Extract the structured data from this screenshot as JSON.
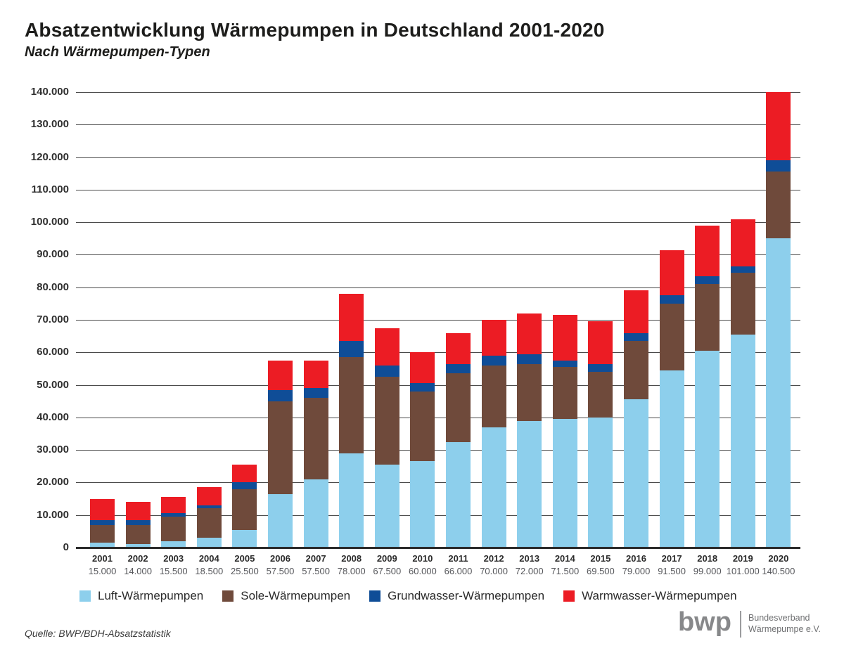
{
  "header": {
    "title": "Absatzentwicklung Wärmepumpen in Deutschland 2001-2020",
    "subtitle": "Nach Wärmepumpen-Typen"
  },
  "footer": {
    "source": "Quelle: BWP/BDH-Absatzstatistik"
  },
  "logo": {
    "mark": "bwp",
    "org_line1": "Bundesverband",
    "org_line2": "Wärmepumpe e.V."
  },
  "chart_data": {
    "type": "bar",
    "stacked": true,
    "grid": true,
    "legend_position": "bottom",
    "ylim": [
      0,
      140000
    ],
    "ytick_step": 10000,
    "ytick_labels": [
      "0",
      "10.000",
      "20.000",
      "30.000",
      "40.000",
      "50.000",
      "60.000",
      "70.000",
      "80.000",
      "90.000",
      "100.000",
      "110.000",
      "120.000",
      "130.000",
      "140.000"
    ],
    "categories": [
      "2001",
      "2002",
      "2003",
      "2004",
      "2005",
      "2006",
      "2007",
      "2008",
      "2009",
      "2010",
      "2011",
      "2012",
      "2013",
      "2014",
      "2015",
      "2016",
      "2017",
      "2018",
      "2019",
      "2020"
    ],
    "totals_labels": [
      "15.000",
      "14.000",
      "15.500",
      "18.500",
      "25.500",
      "57.500",
      "57.500",
      "78.000",
      "67.500",
      "60.000",
      "66.000",
      "70.000",
      "72.000",
      "71.500",
      "69.500",
      "79.000",
      "91.500",
      "99.000",
      "101.000",
      "140.500"
    ],
    "totals": [
      15000,
      14000,
      15500,
      18500,
      25500,
      57500,
      57500,
      78000,
      67500,
      60000,
      66000,
      70000,
      72000,
      71500,
      69500,
      79000,
      91500,
      99000,
      101000,
      140500
    ],
    "series": [
      {
        "name": "Luft-Wärmepumpen",
        "color": "#8dcfec",
        "values": [
          1500,
          1000,
          2000,
          3000,
          5500,
          16500,
          21000,
          29000,
          25500,
          26500,
          32500,
          37000,
          39000,
          39500,
          40000,
          45500,
          54500,
          60500,
          65500,
          95000
        ]
      },
      {
        "name": "Sole-Wärmepumpen",
        "color": "#6f4a3b",
        "values": [
          5500,
          6000,
          7500,
          9000,
          12500,
          28500,
          25000,
          29500,
          27000,
          21500,
          21000,
          19000,
          17500,
          16000,
          14000,
          18000,
          20500,
          20500,
          19000,
          20500
        ]
      },
      {
        "name": "Grundwasser-Wärmepumpen",
        "color": "#0f4d97",
        "values": [
          1500,
          1500,
          1000,
          1000,
          2000,
          3500,
          3000,
          5000,
          3500,
          2500,
          3000,
          3000,
          3000,
          2000,
          2500,
          2500,
          2500,
          2500,
          2000,
          3500
        ]
      },
      {
        "name": "Warmwasser-Wärmepumpen",
        "color": "#ec1c24",
        "values": [
          6500,
          5500,
          5000,
          5500,
          5500,
          9000,
          8500,
          14500,
          11500,
          9500,
          9500,
          11000,
          12500,
          14000,
          13000,
          13000,
          14000,
          15500,
          14500,
          21500
        ]
      }
    ]
  }
}
